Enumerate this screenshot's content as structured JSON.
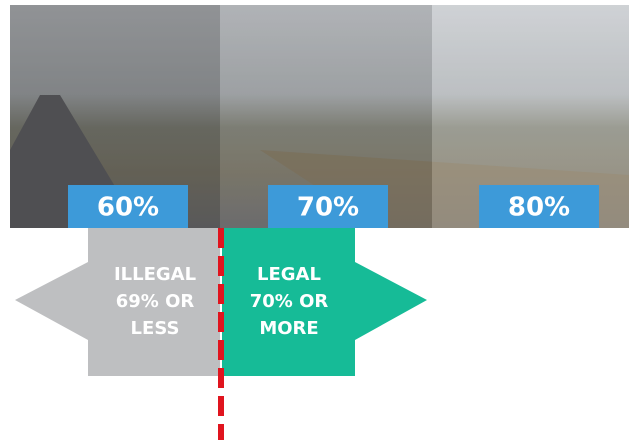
{
  "labels": [
    "60%",
    "70%",
    "80%"
  ],
  "illegal": {
    "lines": [
      "ILLEGAL",
      "69% OR",
      "LESS"
    ]
  },
  "legal": {
    "lines": [
      "LEGAL",
      "70% OR",
      "MORE"
    ]
  }
}
